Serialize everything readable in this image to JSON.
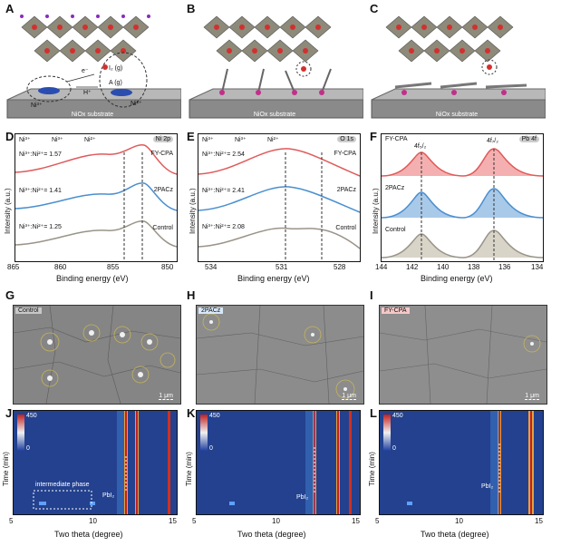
{
  "panels": {
    "A": {
      "label": "A",
      "substrate": "NiOx substrate",
      "ions": [
        "Ni³⁺",
        "Ni²⁺"
      ],
      "species": [
        "e⁻",
        "H⁺",
        "I₂ (g)",
        "A (g)"
      ]
    },
    "B": {
      "label": "B",
      "substrate": "NiOx substrate"
    },
    "C": {
      "label": "C",
      "substrate": "NiOx substrate"
    },
    "D": {
      "label": "D",
      "badge": "Ni 2p",
      "legend": [
        "Ni³⁺",
        "Ni³⁺",
        "Ni²⁺"
      ],
      "rows": [
        {
          "name": "FY-CPA",
          "ratio": "Ni³⁺:Ni²⁺= 1.57"
        },
        {
          "name": "2PACz",
          "ratio": "Ni³⁺:Ni²⁺= 1.41"
        },
        {
          "name": "Control",
          "ratio": "Ni³⁺:Ni²⁺= 1.25"
        }
      ],
      "xticks": [
        "865",
        "860",
        "855",
        "850"
      ],
      "xlabel": "Binding energy (eV)",
      "ylabel": "Intensity (a.u.)"
    },
    "E": {
      "label": "E",
      "badge": "O 1s",
      "legend": [
        "Ni³⁺",
        "Ni³⁺",
        "Ni²⁺"
      ],
      "rows": [
        {
          "name": "FY-CPA",
          "ratio": "Ni³⁺:Ni²⁺= 2.54"
        },
        {
          "name": "2PACz",
          "ratio": "Ni³⁺:Ni²⁺= 2.41"
        },
        {
          "name": "Control",
          "ratio": "Ni³⁺:Ni²⁺= 2.08"
        }
      ],
      "xticks": [
        "534",
        "531",
        "528"
      ],
      "xlabel": "Binding energy (eV)",
      "ylabel": "Intensity (a.u.)"
    },
    "F": {
      "label": "F",
      "badge": "Pb 4f",
      "peaks": [
        "4f₅/₂",
        "4f₇/₂"
      ],
      "rows": [
        "FY-CPA",
        "2PACz",
        "Control"
      ],
      "xticks": [
        "144",
        "142",
        "140",
        "138",
        "136",
        "134"
      ],
      "xlabel": "Binding energy (eV)",
      "ylabel": "Intensity (a.u.)"
    },
    "G": {
      "label": "G",
      "tag": "Control",
      "scale": "1 μm"
    },
    "H": {
      "label": "H",
      "tag": "2PACz",
      "scale": "1 μm"
    },
    "I": {
      "label": "I",
      "tag": "FY-CPA",
      "scale": "1 μm"
    },
    "J": {
      "label": "J",
      "cmax": "450",
      "cmin": "0",
      "xticks": [
        "5",
        "10",
        "15"
      ],
      "xlabel": "Two theta (degree)",
      "ylabel": "Time (min)",
      "peak": "PbI₂",
      "annotation": "intermediate phase"
    },
    "K": {
      "label": "K",
      "cmax": "450",
      "cmin": "0",
      "xticks": [
        "5",
        "10",
        "15"
      ],
      "xlabel": "Two theta (degree)",
      "ylabel": "Time (min)",
      "peak": "PbI₂"
    },
    "L": {
      "label": "L",
      "cmax": "450",
      "cmin": "0",
      "xticks": [
        "5",
        "10",
        "15"
      ],
      "xlabel": "Two theta (degree)",
      "ylabel": "Time (min)",
      "peak": "PbI₂"
    }
  },
  "colors": {
    "fycpa": "#e05a5a",
    "pacz": "#4a8fd0",
    "control": "#9a9488",
    "bg_heat": "#1f3a8a"
  }
}
